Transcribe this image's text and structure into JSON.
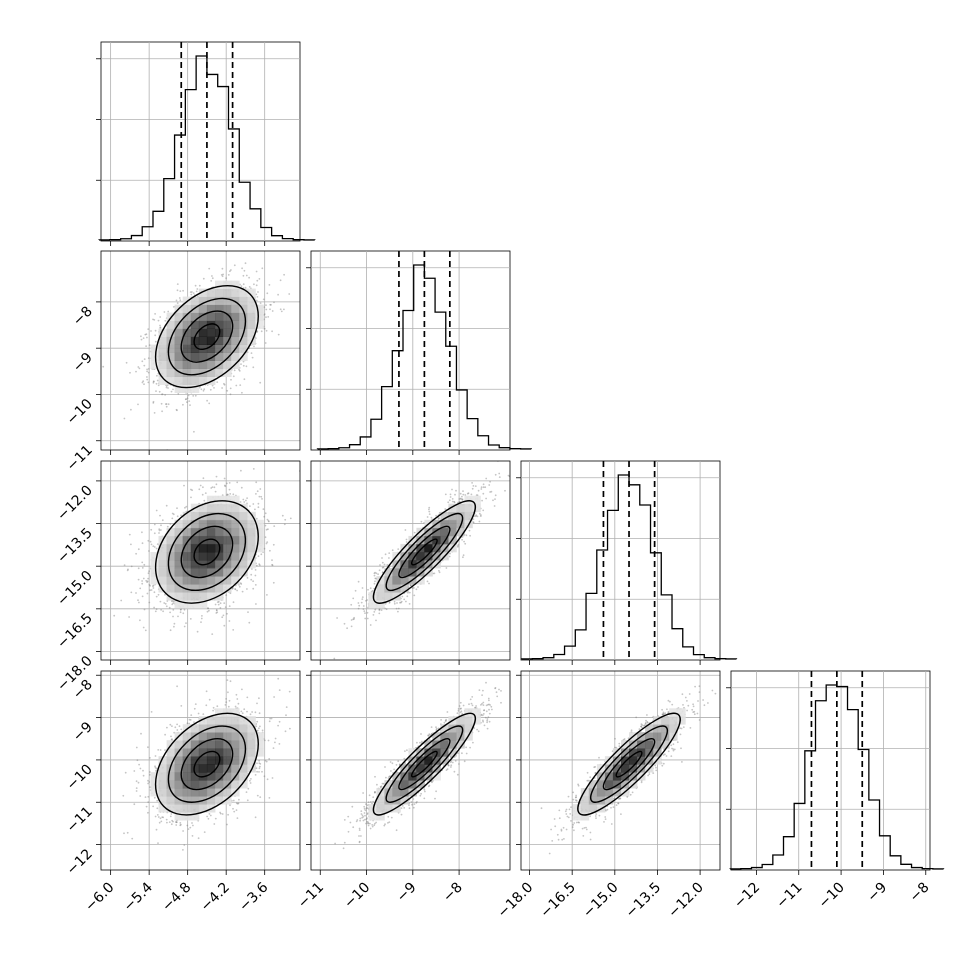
{
  "chart_data": {
    "type": "corner",
    "grid": true,
    "colors": {
      "hist": "#000000",
      "points": "#7f7f7f",
      "quantile_line": "#000000",
      "grid": "#b0b0b0"
    },
    "parameters": [
      {
        "range": [
          -6.15,
          -3.05
        ],
        "ticks": [
          -6.0,
          -5.4,
          -4.8,
          -4.2,
          -3.6
        ],
        "tick_labels": [
          "−6.0",
          "−5.4",
          "−4.8",
          "−4.2",
          "−3.6"
        ],
        "mean": -4.5,
        "sd": 0.4,
        "quantiles": [
          -4.9,
          -4.5,
          -4.1
        ]
      },
      {
        "range": [
          -11.2,
          -6.9
        ],
        "ticks": [
          -11,
          -10,
          -9,
          -8
        ],
        "tick_labels": [
          "−11",
          "−10",
          "−9",
          "−8"
        ],
        "mean": -8.75,
        "sd": 0.55,
        "quantiles": [
          -9.3,
          -8.75,
          -8.2
        ]
      },
      {
        "range": [
          -18.3,
          -11.3
        ],
        "ticks": [
          -18.0,
          -16.5,
          -15.0,
          -13.5,
          -12.0
        ],
        "tick_labels": [
          "−18.0",
          "−16.5",
          "−15.0",
          "−13.5",
          "−12.0"
        ],
        "mean": -14.5,
        "sd": 0.9,
        "quantiles": [
          -15.4,
          -14.5,
          -13.6
        ]
      },
      {
        "range": [
          -12.6,
          -7.9
        ],
        "ticks": [
          -12,
          -11,
          -10,
          -9,
          -8
        ],
        "tick_labels": [
          "−12",
          "−11",
          "−10",
          "−9",
          "−8"
        ],
        "mean": -10.1,
        "sd": 0.6,
        "quantiles": [
          -10.7,
          -10.1,
          -9.5
        ]
      }
    ],
    "correlations": [
      [
        1.0,
        0.4,
        0.3,
        0.4
      ],
      [
        0.4,
        1.0,
        0.88,
        0.9
      ],
      [
        0.3,
        0.88,
        1.0,
        0.88
      ],
      [
        0.4,
        0.9,
        0.88,
        1.0
      ]
    ],
    "histogram_bins": 20,
    "contour_levels_sigma": [
      0.5,
      1.0,
      1.5,
      2.0
    ]
  }
}
